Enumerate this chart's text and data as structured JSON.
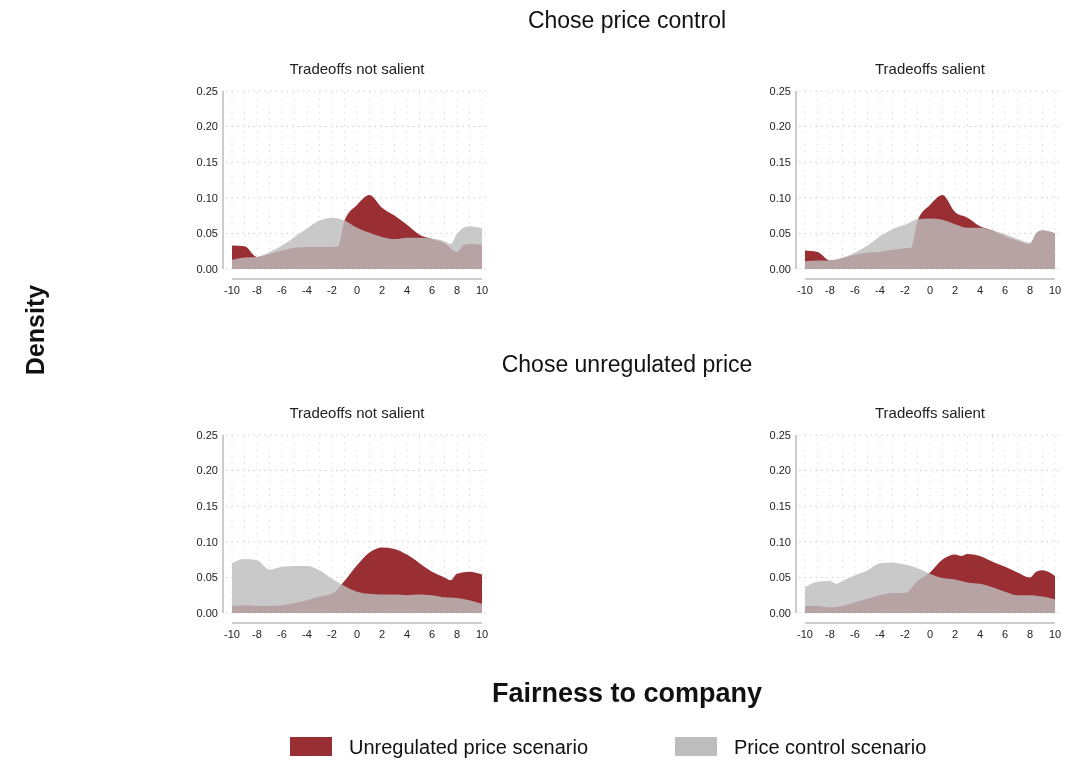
{
  "chart_data": [
    {
      "type": "area",
      "title": "Tradeoffs not salient",
      "annotations": [
        "Chose price control"
      ],
      "xlabel": "Fairness to company",
      "ylabel": "Density",
      "legend": "bottom",
      "grid": true,
      "xlim": [
        -10,
        10
      ],
      "ylim": [
        0,
        0.25
      ],
      "xticks": [
        -10,
        -8,
        -6,
        -4,
        -2,
        0,
        2,
        4,
        6,
        8,
        10
      ],
      "yticks": [
        {
          "value": 0,
          "label": "0.00"
        },
        {
          "value": 0.05,
          "label": "0.05"
        },
        {
          "value": 0.1,
          "label": "0.10"
        },
        {
          "value": 0.15,
          "label": "0.15"
        },
        {
          "value": 0.2,
          "label": "0.20"
        },
        {
          "value": 0.25,
          "label": "0.25"
        }
      ],
      "series": [
        {
          "name": "Unregulated price scenario",
          "color": "#992f33",
          "x": [
            -10,
            -9,
            -8,
            -7,
            -6,
            -5,
            -4,
            -3,
            -2,
            -1.5,
            -1,
            0,
            1,
            2,
            3,
            4,
            5,
            6,
            7,
            8,
            8.5,
            9,
            10
          ],
          "values": [
            0.033,
            0.032,
            0.017,
            0.021,
            0.026,
            0.03,
            0.031,
            0.031,
            0.031,
            0.032,
            0.068,
            0.09,
            0.104,
            0.086,
            0.075,
            0.062,
            0.048,
            0.042,
            0.036,
            0.024,
            0.033,
            0.035,
            0.034
          ]
        },
        {
          "name": "Price control scenario",
          "color": "#bdbdbd",
          "x": [
            -10,
            -9,
            -8,
            -7,
            -6,
            -5,
            -4,
            -3,
            -2,
            -1,
            0,
            1,
            2,
            3,
            4,
            5,
            6,
            7,
            7.5,
            8,
            9,
            10
          ],
          "values": [
            0.013,
            0.016,
            0.017,
            0.024,
            0.033,
            0.045,
            0.057,
            0.068,
            0.072,
            0.068,
            0.058,
            0.051,
            0.045,
            0.042,
            0.044,
            0.044,
            0.043,
            0.039,
            0.035,
            0.05,
            0.06,
            0.057
          ]
        }
      ]
    },
    {
      "type": "area",
      "title": "Tradeoffs salient",
      "grid": true,
      "xlim": [
        -10,
        10
      ],
      "ylim": [
        0,
        0.25
      ],
      "xticks": [
        -10,
        -8,
        -6,
        -4,
        -2,
        0,
        2,
        4,
        6,
        8,
        10
      ],
      "yticks": [
        {
          "value": 0,
          "label": "0.00"
        },
        {
          "value": 0.05,
          "label": "0.05"
        },
        {
          "value": 0.1,
          "label": "0.10"
        },
        {
          "value": 0.15,
          "label": "0.15"
        },
        {
          "value": 0.2,
          "label": "0.20"
        },
        {
          "value": 0.25,
          "label": "0.25"
        }
      ],
      "series": [
        {
          "color": "#992f33",
          "x": [
            -10,
            -9,
            -8,
            -7,
            -6,
            -5,
            -4,
            -3,
            -2,
            -1.5,
            -1,
            0,
            1,
            2,
            3,
            4,
            5,
            6,
            7,
            8,
            8.5,
            9,
            10
          ],
          "values": [
            0.026,
            0.024,
            0.012,
            0.015,
            0.02,
            0.023,
            0.024,
            0.027,
            0.029,
            0.03,
            0.068,
            0.09,
            0.104,
            0.08,
            0.072,
            0.06,
            0.054,
            0.046,
            0.04,
            0.035,
            0.05,
            0.054,
            0.05
          ]
        },
        {
          "color": "#bdbdbd",
          "x": [
            -10,
            -9,
            -8,
            -7,
            -6,
            -5,
            -4,
            -3,
            -2,
            -1,
            0,
            1,
            2,
            3,
            4,
            5,
            6,
            7,
            8,
            8.5,
            9,
            10
          ],
          "values": [
            0.011,
            0.012,
            0.012,
            0.016,
            0.023,
            0.033,
            0.046,
            0.056,
            0.062,
            0.07,
            0.071,
            0.069,
            0.063,
            0.058,
            0.058,
            0.054,
            0.049,
            0.042,
            0.037,
            0.05,
            0.054,
            0.05
          ]
        }
      ]
    },
    {
      "type": "area",
      "title": "Tradeoffs not salient",
      "annotations": [
        "Chose unregulated price"
      ],
      "grid": true,
      "xlim": [
        -10,
        10
      ],
      "ylim": [
        0,
        0.25
      ],
      "xticks": [
        -10,
        -8,
        -6,
        -4,
        -2,
        0,
        2,
        4,
        6,
        8,
        10
      ],
      "yticks": [
        {
          "value": 0,
          "label": "0.00"
        },
        {
          "value": 0.05,
          "label": "0.05"
        },
        {
          "value": 0.1,
          "label": "0.10"
        },
        {
          "value": 0.15,
          "label": "0.15"
        },
        {
          "value": 0.2,
          "label": "0.20"
        },
        {
          "value": 0.25,
          "label": "0.25"
        }
      ],
      "series": [
        {
          "color": "#992f33",
          "x": [
            -10,
            -9,
            -8,
            -7,
            -6,
            -5,
            -4,
            -3,
            -2,
            -1,
            0,
            1,
            2,
            3,
            4,
            5,
            6,
            7,
            7.5,
            8,
            9,
            10
          ],
          "values": [
            0.01,
            0.011,
            0.01,
            0.01,
            0.011,
            0.014,
            0.018,
            0.023,
            0.027,
            0.045,
            0.067,
            0.085,
            0.092,
            0.09,
            0.082,
            0.07,
            0.058,
            0.05,
            0.046,
            0.055,
            0.058,
            0.054
          ]
        },
        {
          "color": "#bdbdbd",
          "x": [
            -10,
            -9,
            -8,
            -7,
            -6,
            -5,
            -4,
            -3,
            -2,
            -1,
            0,
            1,
            2,
            3,
            4,
            5,
            6,
            7,
            8,
            9,
            10
          ],
          "values": [
            0.07,
            0.076,
            0.074,
            0.061,
            0.065,
            0.066,
            0.066,
            0.06,
            0.048,
            0.038,
            0.03,
            0.027,
            0.026,
            0.026,
            0.025,
            0.026,
            0.025,
            0.022,
            0.021,
            0.018,
            0.013
          ]
        }
      ]
    },
    {
      "type": "area",
      "title": "Tradeoffs salient",
      "grid": true,
      "xlim": [
        -10,
        10
      ],
      "ylim": [
        0,
        0.25
      ],
      "xticks": [
        -10,
        -8,
        -6,
        -4,
        -2,
        0,
        2,
        4,
        6,
        8,
        10
      ],
      "yticks": [
        {
          "value": 0,
          "label": "0.00"
        },
        {
          "value": 0.05,
          "label": "0.05"
        },
        {
          "value": 0.1,
          "label": "0.10"
        },
        {
          "value": 0.15,
          "label": "0.15"
        },
        {
          "value": 0.2,
          "label": "0.20"
        },
        {
          "value": 0.25,
          "label": "0.25"
        }
      ],
      "series": [
        {
          "color": "#992f33",
          "x": [
            -10,
            -9,
            -8,
            -7,
            -6,
            -5,
            -4,
            -3,
            -2,
            -1,
            0,
            1,
            2,
            2.5,
            3,
            4,
            5,
            6,
            7,
            8,
            8.5,
            9,
            10
          ],
          "values": [
            0.01,
            0.01,
            0.008,
            0.01,
            0.015,
            0.02,
            0.025,
            0.028,
            0.028,
            0.045,
            0.057,
            0.075,
            0.082,
            0.08,
            0.083,
            0.08,
            0.072,
            0.065,
            0.057,
            0.05,
            0.058,
            0.06,
            0.052
          ]
        },
        {
          "color": "#bdbdbd",
          "x": [
            -10,
            -9,
            -8,
            -7.5,
            -7,
            -6,
            -5,
            -4,
            -3,
            -2,
            -1,
            0,
            1,
            2,
            3,
            4,
            5,
            6,
            7,
            8,
            9,
            10
          ],
          "values": [
            0.036,
            0.044,
            0.045,
            0.041,
            0.045,
            0.053,
            0.06,
            0.07,
            0.071,
            0.068,
            0.063,
            0.055,
            0.049,
            0.047,
            0.043,
            0.041,
            0.036,
            0.03,
            0.025,
            0.025,
            0.023,
            0.019
          ]
        }
      ]
    }
  ]
}
